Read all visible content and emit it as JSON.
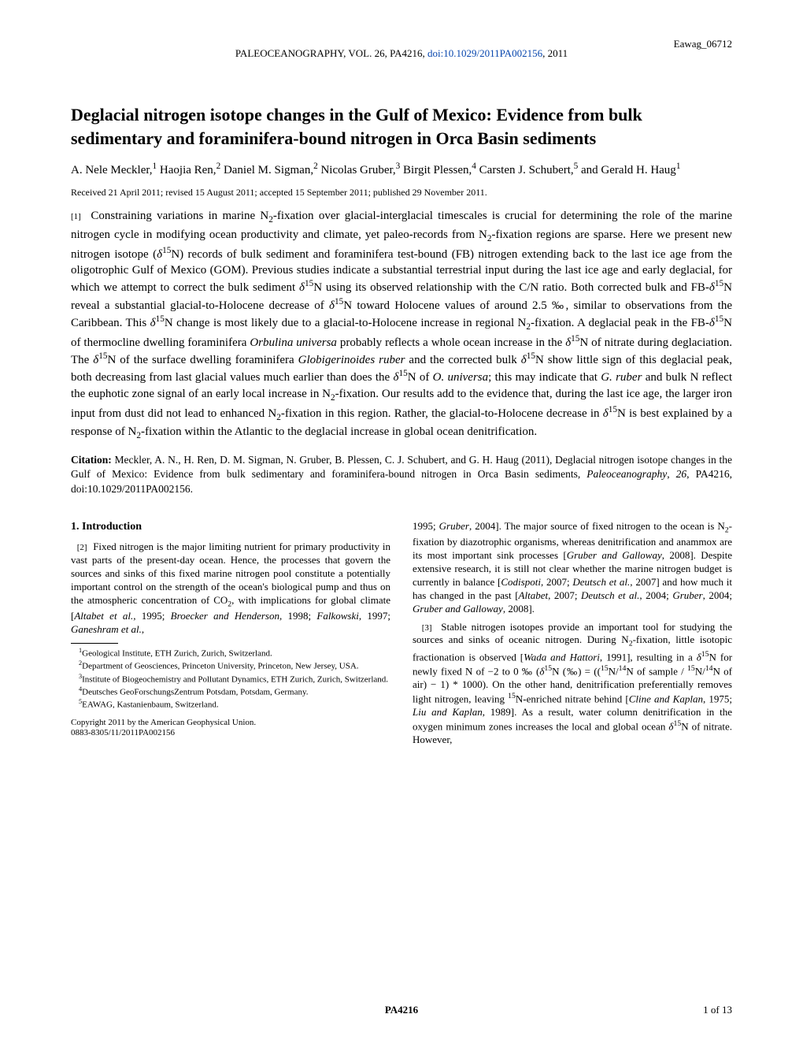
{
  "tag": "Eawag_06712",
  "header": {
    "journal": "PALEOCEANOGRAPHY, VOL. 26, PA4216, ",
    "doi": "doi:10.1029/2011PA002156",
    "year": ", 2011"
  },
  "title": "Deglacial nitrogen isotope changes in the Gulf of Mexico: Evidence from bulk sedimentary and foraminifera-bound nitrogen in Orca Basin sediments",
  "authors_html": "A. Nele Meckler,<sup>1</sup> Haojia Ren,<sup>2</sup> Daniel M. Sigman,<sup>2</sup> Nicolas Gruber,<sup>3</sup> Birgit Plessen,<sup>4</sup> Carsten J. Schubert,<sup>5</sup> and Gerald H. Haug<sup>1</sup>",
  "dates": "Received 21 April 2011; revised 15 August 2011; accepted 15 September 2011; published 29 November 2011.",
  "abstract_html": "<span class='para-num'>[1]</span>&nbsp;&nbsp;Constraining variations in marine N<sub>2</sub>-fixation over glacial-interglacial timescales is crucial for determining the role of the marine nitrogen cycle in modifying ocean productivity and climate, yet paleo-records from N<sub>2</sub>-fixation regions are sparse. Here we present new nitrogen isotope (<span class='ital'>δ</span><sup>15</sup>N) records of bulk sediment and foraminifera test-bound (FB) nitrogen extending back to the last ice age from the oligotrophic Gulf of Mexico (GOM). Previous studies indicate a substantial terrestrial input during the last ice age and early deglacial, for which we attempt to correct the bulk sediment <span class='ital'>δ</span><sup>15</sup>N using its observed relationship with the C/N ratio. Both corrected bulk and FB-<span class='ital'>δ</span><sup>15</sup>N reveal a substantial glacial-to-Holocene decrease of <span class='ital'>δ</span><sup>15</sup>N toward Holocene values of around 2.5 ‰, similar to observations from the Caribbean. This <span class='ital'>δ</span><sup>15</sup>N change is most likely due to a glacial-to-Holocene increase in regional N<sub>2</sub>-fixation. A deglacial peak in the FB-<span class='ital'>δ</span><sup>15</sup>N of thermocline dwelling foraminifera <span class='ital'>Orbulina universa</span> probably reflects a whole ocean increase in the <span class='ital'>δ</span><sup>15</sup>N of nitrate during deglaciation. The <span class='ital'>δ</span><sup>15</sup>N of the surface dwelling foraminifera <span class='ital'>Globigerinoides ruber</span> and the corrected bulk <span class='ital'>δ</span><sup>15</sup>N show little sign of this deglacial peak, both decreasing from last glacial values much earlier than does the <span class='ital'>δ</span><sup>15</sup>N of <span class='ital'>O. universa</span>; this may indicate that <span class='ital'>G. ruber</span> and bulk N reflect the euphotic zone signal of an early local increase in N<sub>2</sub>-fixation. Our results add to the evidence that, during the last ice age, the larger iron input from dust did not lead to enhanced N<sub>2</sub>-fixation in this region. Rather, the glacial-to-Holocene decrease in <span class='ital'>δ</span><sup>15</sup>N is best explained by a response of N<sub>2</sub>-fixation within the Atlantic to the deglacial increase in global ocean denitrification.",
  "citation_html": "<b>Citation:</b> Meckler, A. N., H. Ren, D. M. Sigman, N. Gruber, B. Plessen, C. J. Schubert, and G. H. Haug (2011), Deglacial nitrogen isotope changes in the Gulf of Mexico: Evidence from bulk sedimentary and foraminifera-bound nitrogen in Orca Basin sediments, <span class='ital'>Paleoceanography</span>, <span class='ital'>26</span>, PA4216, doi:10.1029/2011PA002156.",
  "section1_heading": "1.   Introduction",
  "col_left_p1_html": "&nbsp;&nbsp;<span class='para-num'>[2]</span>&nbsp;&nbsp;Fixed nitrogen is the major limiting nutrient for primary productivity in vast parts of the present-day ocean. Hence, the processes that govern the sources and sinks of this fixed marine nitrogen pool constitute a potentially important control on the strength of the ocean's biological pump and thus on the atmospheric concentration of CO<sub>2</sub>, with implications for global climate [<span class='ital'>Altabet et al.</span>, 1995; <span class='ital'>Broecker and Henderson</span>, 1998; <span class='ital'>Falkowski</span>, 1997; <span class='ital'>Ganeshram et al.</span>,",
  "col_right_p1_html": "1995; <span class='ital'>Gruber</span>, 2004]. The major source of fixed nitrogen to the ocean is N<sub>2</sub>-fixation by diazotrophic organisms, whereas denitrification and anammox are its most important sink processes [<span class='ital'>Gruber and Galloway</span>, 2008]. Despite extensive research, it is still not clear whether the marine nitrogen budget is currently in balance [<span class='ital'>Codispoti</span>, 2007; <span class='ital'>Deutsch et al.</span>, 2007] and how much it has changed in the past [<span class='ital'>Altabet</span>, 2007; <span class='ital'>Deutsch et al.</span>, 2004; <span class='ital'>Gruber</span>, 2004; <span class='ital'>Gruber and Galloway</span>, 2008].",
  "col_right_p2_html": "&nbsp;&nbsp;<span class='para-num'>[3]</span>&nbsp;&nbsp;Stable nitrogen isotopes provide an important tool for studying the sources and sinks of oceanic nitrogen. During N<sub>2</sub>-fixation, little isotopic fractionation is observed [<span class='ital'>Wada and Hattori</span>, 1991], resulting in a <span class='ital'>δ</span><sup>15</sup>N for newly fixed N of −2 to 0 ‰ (<span class='ital'>δ</span><sup>15</sup>N (‰) = ((<sup>15</sup>N/<sup>14</sup>N of sample / <sup>15</sup>N/<sup>14</sup>N of air) − 1) * 1000). On the other hand, denitrification preferentially removes light nitrogen, leaving <sup>15</sup>N-enriched nitrate behind [<span class='ital'>Cline and Kaplan</span>, 1975; <span class='ital'>Liu and Kaplan</span>, 1989]. As a result, water column denitrification in the oxygen minimum zones increases the local and global ocean <span class='ital'>δ</span><sup>15</sup>N of nitrate. However,",
  "affiliations": [
    "<sup>1</sup>Geological Institute, ETH Zurich, Zurich, Switzerland.",
    "<sup>2</sup>Department of Geosciences, Princeton University, Princeton, New Jersey, USA.",
    "<sup>3</sup>Institute of Biogeochemistry and Pollutant Dynamics, ETH Zurich, Zurich, Switzerland.",
    "<sup>4</sup>Deutsches GeoForschungsZentrum Potsdam, Potsdam, Germany.",
    "<sup>5</sup>EAWAG, Kastanienbaum, Switzerland."
  ],
  "copyright": "Copyright 2011 by the American Geophysical Union.",
  "issn": "0883-8305/11/2011PA002156",
  "footer": {
    "center": "PA4216",
    "right": "1 of 13"
  },
  "colors": {
    "text": "#000000",
    "background": "#ffffff",
    "link": "#0645ad"
  },
  "fonts": {
    "body_family": "Times New Roman",
    "title_size_pt": 17,
    "body_size_pt": 11,
    "small_size_pt": 8.5
  }
}
